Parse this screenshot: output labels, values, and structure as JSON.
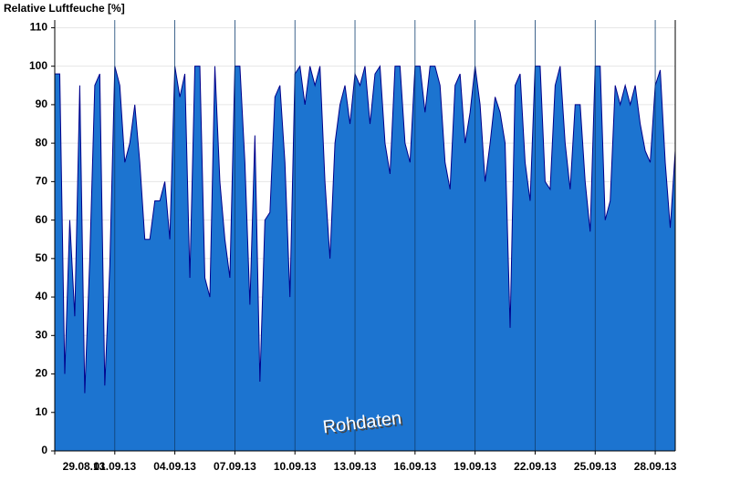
{
  "chart_data": {
    "type": "area",
    "title": "Relative Luftfeuche [%]",
    "annotation": "Rohdaten",
    "color": "#1c74d0",
    "line_color": "#00008b",
    "x": [
      0,
      0.25,
      0.5,
      0.75,
      1,
      1.25,
      1.5,
      1.75,
      2,
      2.25,
      2.5,
      2.75,
      3,
      3.25,
      3.5,
      3.75,
      4,
      4.25,
      4.5,
      4.75,
      5,
      5.25,
      5.5,
      5.75,
      6,
      6.25,
      6.5,
      6.75,
      7,
      7.25,
      7.5,
      7.75,
      8,
      8.25,
      8.5,
      8.75,
      9,
      9.25,
      9.5,
      9.75,
      10,
      10.25,
      10.5,
      10.75,
      11,
      11.25,
      11.5,
      11.75,
      12,
      12.25,
      12.5,
      12.75,
      13,
      13.25,
      13.5,
      13.75,
      14,
      14.25,
      14.5,
      14.75,
      15,
      15.25,
      15.5,
      15.75,
      16,
      16.25,
      16.5,
      16.75,
      17,
      17.25,
      17.5,
      17.75,
      18,
      18.25,
      18.5,
      18.75,
      19,
      19.25,
      19.5,
      19.75,
      20,
      20.25,
      20.5,
      20.75,
      21,
      21.25,
      21.5,
      21.75,
      22,
      22.25,
      22.5,
      22.75,
      23,
      23.25,
      23.5,
      23.75,
      24,
      24.25,
      24.5,
      24.75,
      25,
      25.25,
      25.5,
      25.75,
      26,
      26.25,
      26.5,
      26.75,
      27,
      27.25,
      27.5,
      27.75,
      28,
      28.25,
      28.5,
      28.75,
      29,
      29.25,
      29.5,
      29.75,
      30,
      30.25,
      30.5,
      30.75,
      31
    ],
    "values": [
      98,
      98,
      20,
      60,
      35,
      95,
      15,
      50,
      95,
      98,
      17,
      48,
      100,
      95,
      75,
      80,
      90,
      75,
      55,
      55,
      65,
      65,
      70,
      55,
      100,
      92,
      98,
      45,
      100,
      100,
      45,
      40,
      100,
      70,
      55,
      45,
      100,
      100,
      75,
      38,
      82,
      18,
      60,
      62,
      92,
      95,
      75,
      40,
      98,
      100,
      90,
      100,
      95,
      100,
      70,
      50,
      80,
      90,
      95,
      85,
      98,
      95,
      100,
      85,
      98,
      100,
      80,
      72,
      100,
      100,
      80,
      75,
      100,
      100,
      88,
      100,
      100,
      95,
      75,
      68,
      95,
      98,
      80,
      88,
      100,
      90,
      70,
      80,
      92,
      88,
      80,
      32,
      95,
      98,
      75,
      65,
      100,
      100,
      70,
      68,
      95,
      100,
      80,
      68,
      90,
      90,
      70,
      57,
      100,
      100,
      60,
      65,
      95,
      90,
      95,
      90,
      95,
      85,
      78,
      75,
      95,
      99,
      75,
      58,
      78
    ],
    "xlim": [
      0,
      31
    ],
    "xticks": [
      {
        "value": 0,
        "label": "29.08.13"
      },
      {
        "value": 3,
        "label": "01.09.13"
      },
      {
        "value": 6,
        "label": "04.09.13"
      },
      {
        "value": 9,
        "label": "07.09.13"
      },
      {
        "value": 12,
        "label": "10.09.13"
      },
      {
        "value": 15,
        "label": "13.09.13"
      },
      {
        "value": 18,
        "label": "16.09.13"
      },
      {
        "value": 21,
        "label": "19.09.13"
      },
      {
        "value": 24,
        "label": "22.09.13"
      },
      {
        "value": 27,
        "label": "25.09.13"
      },
      {
        "value": 30,
        "label": "28.09.13"
      }
    ],
    "ylim": [
      0,
      112
    ],
    "yticks": [
      0,
      10,
      20,
      30,
      40,
      50,
      60,
      70,
      80,
      90,
      100,
      110
    ],
    "grid": true
  }
}
